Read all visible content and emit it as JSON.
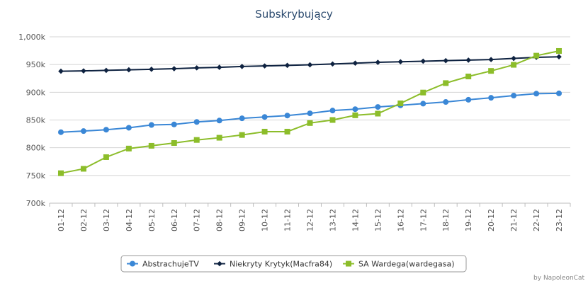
{
  "chart_data": {
    "type": "line",
    "title": "Subskrybujący",
    "xlabel": "",
    "ylabel": "",
    "ylim": [
      700000,
      1000000
    ],
    "yticks": [
      {
        "value": 700000,
        "label": "700k"
      },
      {
        "value": 750000,
        "label": "750k"
      },
      {
        "value": 800000,
        "label": "800k"
      },
      {
        "value": 850000,
        "label": "850k"
      },
      {
        "value": 900000,
        "label": "900k"
      },
      {
        "value": 950000,
        "label": "950k"
      },
      {
        "value": 1000000,
        "label": "1,000k"
      }
    ],
    "categories": [
      "01-12",
      "02-12",
      "03-12",
      "04-12",
      "05-12",
      "06-12",
      "07-12",
      "08-12",
      "09-12",
      "10-12",
      "11-12",
      "12-12",
      "13-12",
      "14-12",
      "15-12",
      "16-12",
      "17-12",
      "18-12",
      "19-12",
      "20-12",
      "21-12",
      "22-12",
      "23-12"
    ],
    "series": [
      {
        "name": "AbstrachujeTV",
        "color": "#3a87d6",
        "marker": "circle",
        "values": [
          828000,
          830000,
          832500,
          836000,
          841000,
          842000,
          846500,
          849000,
          853000,
          855500,
          858000,
          862000,
          867000,
          869500,
          873500,
          876500,
          879500,
          882500,
          886500,
          890000,
          894000,
          897500,
          898000
        ]
      },
      {
        "name": "Niekryty Krytyk(Macfra84)",
        "color": "#0e2240",
        "marker": "diamond",
        "values": [
          938000,
          938500,
          939500,
          940500,
          941500,
          942500,
          944000,
          945000,
          946500,
          947500,
          948500,
          949500,
          951000,
          952500,
          954000,
          955000,
          956000,
          957000,
          958000,
          959000,
          961000,
          963000,
          964000
        ]
      },
      {
        "name": "SA Wardega(wardegasa)",
        "color": "#8cbd2a",
        "marker": "square",
        "values": [
          754000,
          762000,
          783000,
          798500,
          803500,
          808500,
          814000,
          818000,
          823000,
          829000,
          829000,
          844500,
          850000,
          858500,
          861500,
          880000,
          899500,
          916500,
          928500,
          938500,
          949500,
          966000,
          974500
        ]
      }
    ],
    "credit": "by NapoleonCat"
  }
}
